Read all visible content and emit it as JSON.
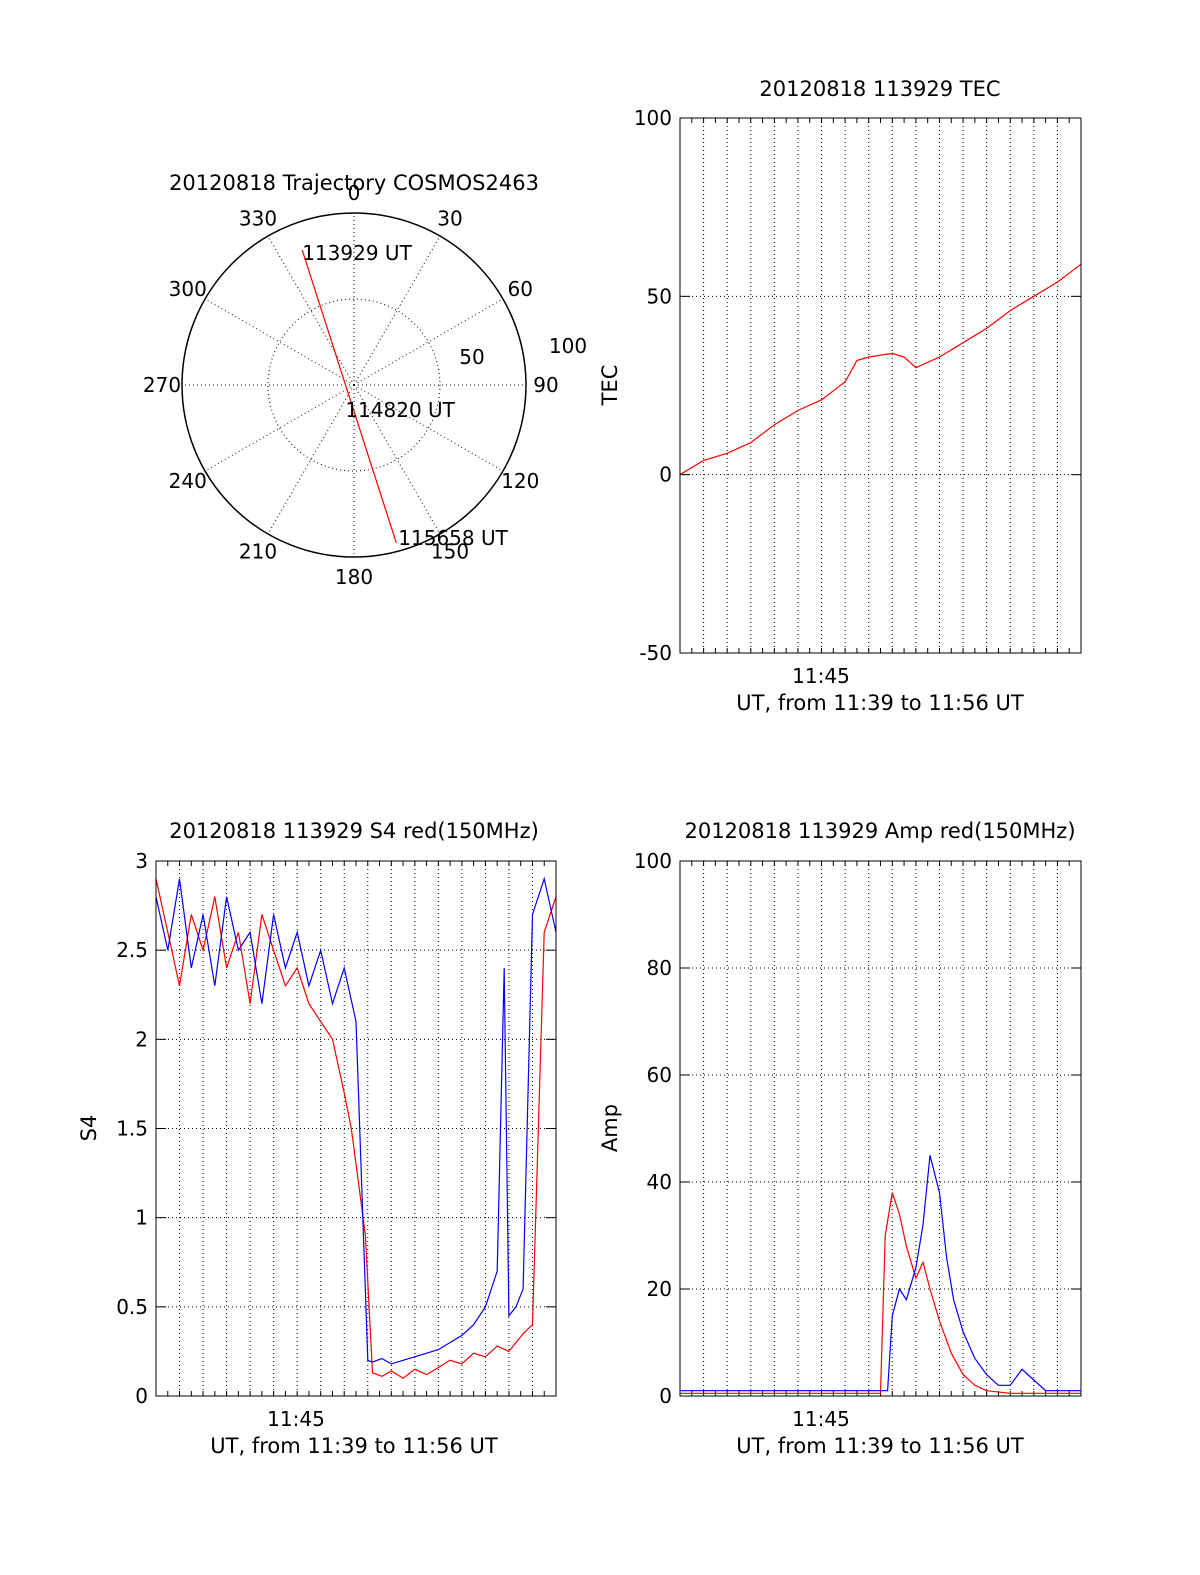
{
  "chart_data": [
    {
      "id": "polar",
      "type": "polar",
      "title": "20120818 Trajectory COSMOS2463",
      "azimuth_labels": [
        "0",
        "30",
        "60",
        "90",
        "120",
        "150",
        "180",
        "210",
        "240",
        "270",
        "300",
        "330"
      ],
      "radial_labels": [
        "50",
        "100"
      ],
      "radial_max": 100,
      "trajectory": {
        "color": "#ff0000",
        "points": [
          {
            "az": 339,
            "r": 84,
            "label": "113929 UT"
          },
          {
            "az": 165,
            "r": 12,
            "label": "114820 UT"
          },
          {
            "az": 165,
            "r": 95,
            "label": "115658 UT"
          }
        ]
      }
    },
    {
      "id": "tec",
      "type": "line",
      "title": "20120818 113929 TEC",
      "ylabel": "TEC",
      "xlabel": "UT, from 11:39 to 11:56 UT",
      "xlim": [
        0,
        17
      ],
      "ylim": [
        -50,
        100
      ],
      "yticks": [
        -50,
        0,
        50,
        100
      ],
      "xtick_label": "11:45",
      "xtick_value": 6,
      "grid": true,
      "series": [
        {
          "color": "#ff0000",
          "x": [
            0,
            1,
            2,
            3,
            4,
            5,
            6,
            7,
            7.5,
            8,
            9,
            9.5,
            10,
            11,
            12,
            13,
            14,
            15,
            16,
            17
          ],
          "y": [
            0,
            4,
            6,
            9,
            14,
            18,
            21,
            26,
            32,
            33,
            34,
            33,
            30,
            33,
            37,
            41,
            46,
            50,
            54,
            59
          ]
        }
      ]
    },
    {
      "id": "s4",
      "type": "line",
      "title": "20120818 113929 S4 red(150MHz)",
      "ylabel": "S4",
      "xlabel": "UT, from 11:39 to 11:56 UT",
      "xlim": [
        0,
        17
      ],
      "ylim": [
        0,
        3
      ],
      "yticks": [
        0,
        0.5,
        1,
        1.5,
        2,
        2.5,
        3
      ],
      "xtick_label": "11:45",
      "xtick_value": 6,
      "grid": true,
      "series": [
        {
          "color": "#ff0000",
          "x": [
            0,
            0.5,
            1,
            1.5,
            2,
            2.5,
            3,
            3.5,
            4,
            4.5,
            5,
            5.5,
            6,
            6.5,
            7,
            7.5,
            8,
            8.3,
            8.6,
            8.9,
            9.2,
            9.6,
            10,
            10.5,
            11,
            11.5,
            12,
            12.5,
            13,
            13.5,
            14,
            14.5,
            15,
            15.3,
            15.6,
            16,
            16.5,
            17
          ],
          "y": [
            2.9,
            2.6,
            2.3,
            2.7,
            2.5,
            2.8,
            2.4,
            2.6,
            2.2,
            2.7,
            2.5,
            2.3,
            2.4,
            2.2,
            2.1,
            2.0,
            1.7,
            1.5,
            1.2,
            0.9,
            0.13,
            0.11,
            0.14,
            0.1,
            0.15,
            0.12,
            0.16,
            0.2,
            0.18,
            0.24,
            0.22,
            0.28,
            0.25,
            0.3,
            0.35,
            0.4,
            2.6,
            2.8
          ]
        },
        {
          "color": "#0000ff",
          "x": [
            0,
            0.5,
            1,
            1.5,
            2,
            2.5,
            3,
            3.5,
            4,
            4.5,
            5,
            5.5,
            6,
            6.5,
            7,
            7.5,
            8,
            8.5,
            9,
            9.2,
            9.6,
            10,
            10.5,
            11,
            11.5,
            12,
            12.5,
            13,
            13.5,
            14,
            14.5,
            14.8,
            15,
            15.3,
            15.6,
            16,
            16.5,
            17
          ],
          "y": [
            2.8,
            2.5,
            2.9,
            2.4,
            2.7,
            2.3,
            2.8,
            2.5,
            2.6,
            2.2,
            2.7,
            2.4,
            2.6,
            2.3,
            2.5,
            2.2,
            2.4,
            2.1,
            0.2,
            0.19,
            0.21,
            0.18,
            0.2,
            0.22,
            0.24,
            0.26,
            0.3,
            0.34,
            0.4,
            0.5,
            0.7,
            2.4,
            0.45,
            0.5,
            0.6,
            2.7,
            2.9,
            2.6
          ]
        }
      ]
    },
    {
      "id": "amp",
      "type": "line",
      "title": "20120818 113929 Amp red(150MHz)",
      "ylabel": "Amp",
      "xlabel": "UT, from 11:39 to 11:56 UT",
      "xlim": [
        0,
        17
      ],
      "ylim": [
        0,
        100
      ],
      "yticks": [
        0,
        20,
        40,
        60,
        80,
        100
      ],
      "xtick_label": "11:45",
      "xtick_value": 6,
      "grid": true,
      "series": [
        {
          "color": "#ff0000",
          "x": [
            0,
            2,
            4,
            6,
            8,
            8.5,
            8.7,
            9,
            9.3,
            9.6,
            10,
            10.3,
            10.6,
            11,
            11.5,
            12,
            12.5,
            13,
            14,
            15,
            16,
            17
          ],
          "y": [
            0.5,
            0.5,
            0.5,
            0.5,
            0.5,
            0.5,
            30,
            38,
            34,
            28,
            22,
            25,
            20,
            14,
            8,
            4,
            2,
            1,
            0.5,
            0.5,
            0.5,
            0.5
          ]
        },
        {
          "color": "#0000ff",
          "x": [
            0,
            2,
            4,
            6,
            8,
            8.8,
            9,
            9.3,
            9.6,
            10,
            10.3,
            10.6,
            11,
            11.3,
            11.6,
            12,
            12.5,
            13,
            13.5,
            14,
            14.5,
            15,
            15.5,
            16,
            16.5,
            17
          ],
          "y": [
            1,
            1,
            1,
            1,
            1,
            1,
            15,
            20,
            18,
            24,
            32,
            45,
            38,
            26,
            18,
            12,
            7,
            4,
            2,
            2,
            5,
            3,
            1,
            1,
            1,
            1
          ]
        }
      ]
    }
  ]
}
